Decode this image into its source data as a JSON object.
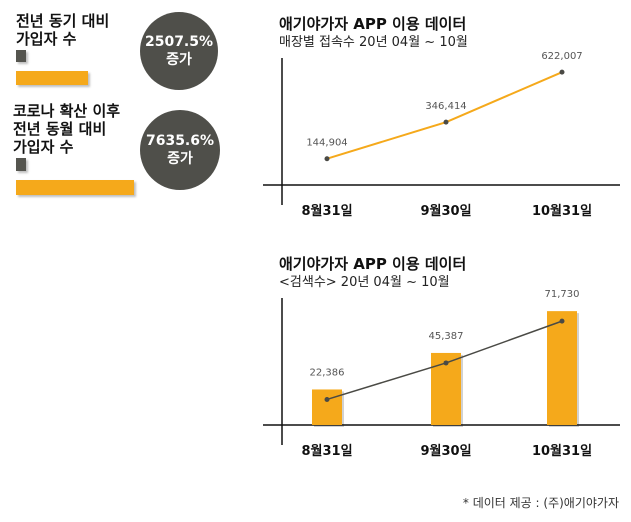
{
  "stats": [
    {
      "label_lines": [
        "전년 동기 대비",
        "가입자 수"
      ],
      "percent": "2507.5%",
      "suffix": "증가"
    },
    {
      "label_lines": [
        "코로나 확산 이후",
        "전년 동월 대비",
        "가입자 수"
      ],
      "percent": "7635.6%",
      "suffix": "증가"
    }
  ],
  "colors": {
    "accent": "#f5a91b",
    "dark": "#4f4f4a"
  },
  "chart_data": [
    {
      "type": "line",
      "title": "애기야가자 APP 이용 데이터",
      "subtitle": "매장별 접속수 20년 04월 ~ 10월",
      "categories": [
        "8월31일",
        "9월30일",
        "10월31일"
      ],
      "values": [
        144904,
        346414,
        622007
      ],
      "value_labels": [
        "144,904",
        "346,414",
        "622,007"
      ],
      "ylim": [
        0,
        700000
      ],
      "grid": false
    },
    {
      "type": "bar",
      "title": "애기야가자 APP 이용 데이터",
      "subtitle": "<검색수> 20년 04월 ~ 10월",
      "categories": [
        "8월31일",
        "9월30일",
        "10월31일"
      ],
      "values": [
        22386,
        45387,
        71730
      ],
      "value_labels": [
        "22,386",
        "45,387",
        "71,730"
      ],
      "ylim": [
        0,
        80000
      ],
      "grid": false,
      "overlay_line": true
    }
  ],
  "footnote": "* 데이터 제공 : (주)애기야가자"
}
